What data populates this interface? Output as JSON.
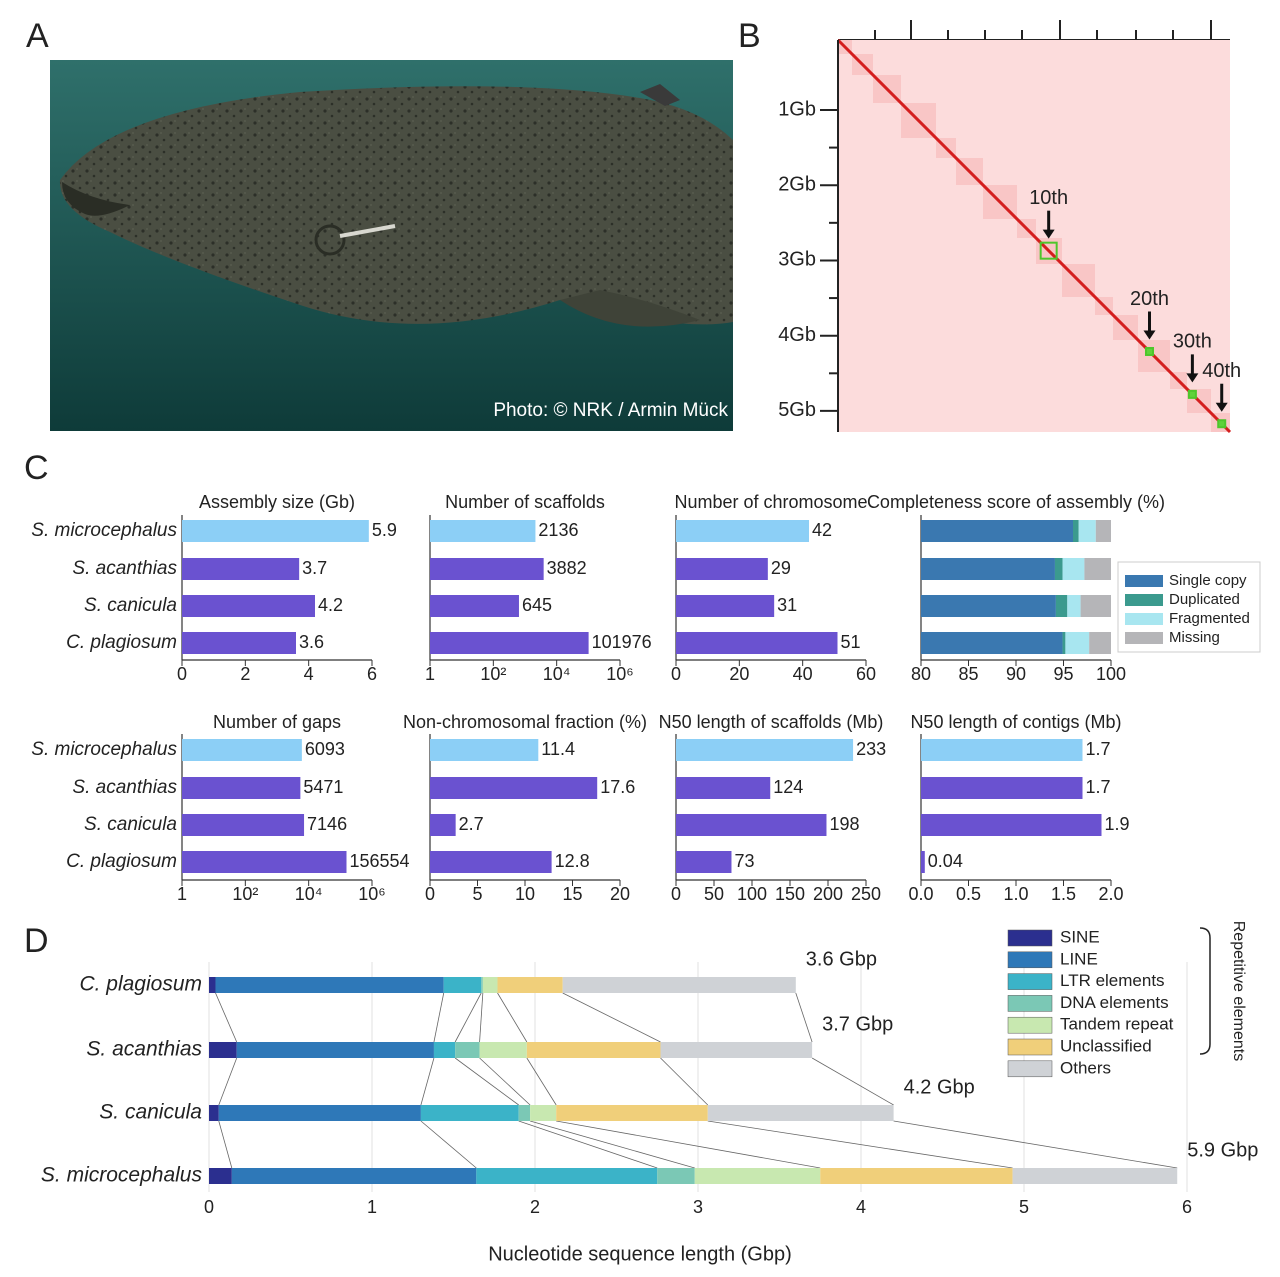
{
  "panels": [
    "A",
    "B",
    "C",
    "D"
  ],
  "photo_credit": "Photo: © NRK / Armin Mück",
  "chart_data": [
    {
      "type": "heatmap",
      "ylim": [
        0.07,
        5.28
      ],
      "yticks": [
        {
          "value": 1,
          "label": "1Gb"
        },
        {
          "value": 2,
          "label": "2Gb"
        },
        {
          "value": 3,
          "label": "3Gb"
        },
        {
          "value": 4,
          "label": "4Gb"
        },
        {
          "value": 5,
          "label": "5Gb"
        }
      ],
      "annotations": [
        {
          "text": "10th",
          "position": 2.87
        },
        {
          "text": "20th",
          "position": 4.21
        },
        {
          "text": "30th",
          "position": 4.78
        },
        {
          "text": "40th",
          "position": 5.17
        }
      ]
    },
    {
      "type": "bar",
      "title": "Assembly size (Gb)",
      "categories": [
        "S. microcephalus",
        "S. acanthias",
        "S. canicula",
        "C. plagiosum"
      ],
      "values": [
        5.9,
        3.7,
        4.2,
        3.6
      ],
      "colors": [
        "#8ccff6",
        "#6a52d0",
        "#6a52d0",
        "#6a52d0"
      ],
      "xlim": [
        0,
        6
      ],
      "xticks": [
        0,
        2,
        4,
        6
      ]
    },
    {
      "type": "bar",
      "title": "Number of scaffolds",
      "log": true,
      "values": [
        2136,
        3882,
        645,
        101976
      ],
      "colors": [
        "#8ccff6",
        "#6a52d0",
        "#6a52d0",
        "#6a52d0"
      ],
      "xlim": [
        1,
        1000000
      ],
      "xticks": [
        1,
        {
          "value": 100,
          "label": "10²"
        },
        {
          "value": 10000,
          "label": "10⁴"
        },
        {
          "value": 1000000,
          "label": "10⁶"
        }
      ]
    },
    {
      "type": "bar",
      "title": "Number of chromosome",
      "values": [
        42,
        29,
        31,
        51
      ],
      "colors": [
        "#8ccff6",
        "#6a52d0",
        "#6a52d0",
        "#6a52d0"
      ],
      "xlim": [
        0,
        60
      ],
      "xticks": [
        0,
        20,
        40,
        60
      ]
    },
    {
      "type": "stacked-bar",
      "title": "Completeness score of assembly (%)",
      "xlim": [
        80,
        100
      ],
      "xticks": [
        80,
        85,
        90,
        95,
        100
      ],
      "legend": "right",
      "series": [
        {
          "name": "Single copy",
          "color": "#3a78b0",
          "values": [
            96.0,
            94.1,
            94.2,
            94.9
          ]
        },
        {
          "name": "Duplicated",
          "color": "#3b9a8e",
          "values": [
            0.6,
            0.8,
            1.2,
            0.3
          ]
        },
        {
          "name": "Fragmented",
          "color": "#a8e6f0",
          "values": [
            1.8,
            2.3,
            1.4,
            2.5
          ]
        },
        {
          "name": "Missing",
          "color": "#b5b5b8",
          "values": [
            1.6,
            2.8,
            3.2,
            2.3
          ]
        }
      ]
    },
    {
      "type": "bar",
      "title": "Number of gaps",
      "log": true,
      "categories": [
        "S. microcephalus",
        "S. acanthias",
        "S. canicula",
        "C. plagiosum"
      ],
      "values": [
        6093,
        5471,
        7146,
        156554
      ],
      "colors": [
        "#8ccff6",
        "#6a52d0",
        "#6a52d0",
        "#6a52d0"
      ],
      "xlim": [
        1,
        1000000
      ],
      "xticks": [
        1,
        {
          "value": 100,
          "label": "10²"
        },
        {
          "value": 10000,
          "label": "10⁴"
        },
        {
          "value": 1000000,
          "label": "10⁶"
        }
      ]
    },
    {
      "type": "bar",
      "title": "Non-chromosomal fraction (%)",
      "values": [
        11.4,
        17.6,
        2.7,
        12.8
      ],
      "colors": [
        "#8ccff6",
        "#6a52d0",
        "#6a52d0",
        "#6a52d0"
      ],
      "xlim": [
        0,
        20
      ],
      "xticks": [
        0,
        5,
        10,
        15,
        20
      ]
    },
    {
      "type": "bar",
      "title": "N50 length of scaffolds (Mb)",
      "values": [
        233,
        124,
        198,
        73
      ],
      "colors": [
        "#8ccff6",
        "#6a52d0",
        "#6a52d0",
        "#6a52d0"
      ],
      "xlim": [
        0,
        250
      ],
      "xticks": [
        0,
        50,
        100,
        150,
        200,
        250
      ]
    },
    {
      "type": "bar",
      "title": "N50 length of contigs (Mb)",
      "values": [
        1.7,
        1.7,
        1.9,
        0.04
      ],
      "colors": [
        "#8ccff6",
        "#6a52d0",
        "#6a52d0",
        "#6a52d0"
      ],
      "xlim": [
        0,
        2
      ],
      "xticks": [
        {
          "value": 0,
          "label": "0.0"
        },
        0.5,
        {
          "value": 1,
          "label": "1.0"
        },
        1.5,
        {
          "value": 2,
          "label": "2.0"
        }
      ]
    },
    {
      "type": "stacked-lengths",
      "xlabel": "Nucleotide sequence length (Gbp)",
      "categories": [
        "C. plagiosum",
        "S. acanthias",
        "S. canicula",
        "S. microcephalus"
      ],
      "xlim": [
        0,
        6
      ],
      "xticks": [
        0,
        1,
        2,
        3,
        4,
        5,
        6
      ],
      "grid": true,
      "legend": "top-right",
      "legend_group_label": "Repetitive elements",
      "annotations": [
        "3.6 Gbp",
        "3.7 Gbp",
        "4.2 Gbp",
        "5.9 Gbp"
      ],
      "series": [
        {
          "name": "SINE",
          "color": "#2b2f8f",
          "values": [
            0.04,
            0.17,
            0.06,
            0.14
          ]
        },
        {
          "name": "LINE",
          "color": "#2e78b8",
          "values": [
            1.4,
            1.21,
            1.24,
            1.5
          ]
        },
        {
          "name": "LTR elements",
          "color": "#3bb3c8",
          "values": [
            0.23,
            0.13,
            0.6,
            1.11
          ]
        },
        {
          "name": "DNA elements",
          "color": "#7bc8b5",
          "values": [
            0.01,
            0.15,
            0.07,
            0.23
          ]
        },
        {
          "name": "Tandem repeat",
          "color": "#c8e8b0",
          "values": [
            0.09,
            0.29,
            0.16,
            0.77
          ]
        },
        {
          "name": "Unclassified",
          "color": "#f0cf7a",
          "values": [
            0.4,
            0.82,
            0.93,
            1.18
          ]
        },
        {
          "name": "Others",
          "color": "#cfd2d6",
          "values": [
            1.43,
            0.93,
            1.14,
            1.01
          ]
        }
      ]
    }
  ]
}
